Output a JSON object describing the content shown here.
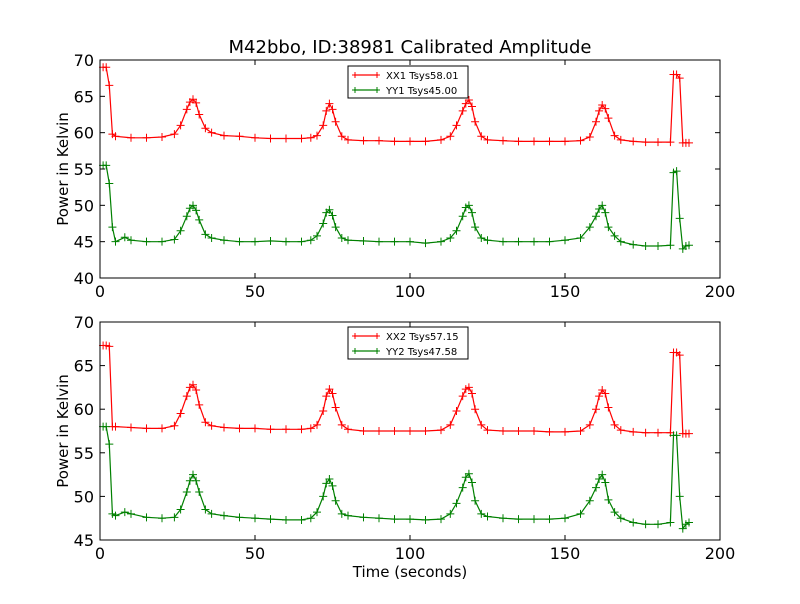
{
  "title": "M42bbo, ID:38981 Calibrated Amplitude",
  "colors": {
    "red": "#ff0000",
    "green": "#008000",
    "axes": "#000000",
    "background": "#ffffff"
  },
  "chart_data": [
    {
      "type": "line",
      "title": "M42bbo, ID:38981 Calibrated Amplitude",
      "xlabel": "",
      "ylabel": "Power in Kelvin",
      "xlim": [
        0,
        200
      ],
      "ylim": [
        40,
        70
      ],
      "xticks": [
        0,
        50,
        100,
        150,
        200
      ],
      "yticks": [
        40,
        45,
        50,
        55,
        60,
        65,
        70
      ],
      "grid": false,
      "legend": "upper center",
      "marker": "+",
      "series": [
        {
          "name": "XX1 Tsys58.01",
          "color": "#ff0000",
          "x": [
            1,
            2,
            3,
            4,
            5,
            10,
            15,
            20,
            24,
            26,
            28,
            29,
            30,
            31,
            32,
            34,
            36,
            40,
            45,
            50,
            55,
            60,
            65,
            68,
            70,
            72,
            73,
            74,
            75,
            76,
            78,
            80,
            85,
            90,
            95,
            100,
            105,
            110,
            113,
            115,
            117,
            118,
            119,
            120,
            121,
            123,
            125,
            130,
            135,
            140,
            145,
            150,
            155,
            158,
            160,
            161,
            162,
            163,
            164,
            166,
            168,
            172,
            176,
            180,
            184,
            185,
            186,
            187,
            188,
            189,
            190
          ],
          "y": [
            69,
            69,
            66.5,
            59.8,
            59.5,
            59.3,
            59.3,
            59.4,
            59.8,
            61,
            63.2,
            64.2,
            64.6,
            64.1,
            62.5,
            60.6,
            60,
            59.6,
            59.5,
            59.3,
            59.2,
            59.2,
            59.2,
            59.3,
            59.6,
            61,
            63,
            64,
            63.2,
            61.5,
            59.5,
            59,
            58.9,
            58.9,
            58.8,
            58.8,
            58.8,
            59,
            59.5,
            61,
            63,
            64,
            64.5,
            63.6,
            61.5,
            59.5,
            59,
            58.9,
            58.8,
            58.8,
            58.8,
            58.8,
            58.9,
            59.4,
            61.5,
            63,
            63.8,
            63.3,
            62,
            59.6,
            59,
            58.8,
            58.7,
            58.7,
            58.7,
            68,
            68,
            67.5,
            58.6,
            58.6,
            58.6
          ]
        },
        {
          "name": "YY1 Tsys45.00",
          "color": "#008000",
          "x": [
            1,
            2,
            3,
            4,
            5,
            8,
            10,
            15,
            20,
            24,
            26,
            28,
            29,
            30,
            31,
            32,
            34,
            36,
            40,
            45,
            50,
            55,
            60,
            65,
            68,
            70,
            72,
            73,
            74,
            75,
            76,
            78,
            80,
            85,
            90,
            95,
            100,
            105,
            110,
            113,
            115,
            117,
            118,
            119,
            120,
            121,
            123,
            125,
            130,
            135,
            140,
            145,
            150,
            155,
            158,
            160,
            161,
            162,
            163,
            164,
            166,
            168,
            172,
            176,
            180,
            184,
            185,
            186,
            187,
            188,
            189,
            190
          ],
          "y": [
            55.5,
            55.5,
            53,
            47,
            45,
            45.6,
            45.2,
            45,
            45,
            45.3,
            46.5,
            48.5,
            49.6,
            50,
            49.3,
            48,
            46,
            45.5,
            45.2,
            45,
            45,
            45.1,
            45,
            45,
            45.2,
            45.8,
            47.5,
            49,
            49.4,
            48.6,
            47,
            45.5,
            45.2,
            45.1,
            45,
            45,
            45,
            44.8,
            45,
            45.5,
            46.5,
            48.5,
            49.7,
            50,
            49,
            47,
            45.5,
            45.2,
            45,
            45,
            45,
            45,
            45.2,
            45.5,
            47,
            48.5,
            49.5,
            50,
            49,
            47,
            45.8,
            45,
            44.6,
            44.4,
            44.4,
            44.5,
            54.5,
            54.7,
            48.2,
            44,
            44.4,
            44.5
          ]
        }
      ]
    },
    {
      "type": "line",
      "title": "",
      "xlabel": "Time (seconds)",
      "ylabel": "Power in Kelvin",
      "xlim": [
        0,
        200
      ],
      "ylim": [
        45,
        70
      ],
      "xticks": [
        0,
        50,
        100,
        150,
        200
      ],
      "yticks": [
        45,
        50,
        55,
        60,
        65,
        70
      ],
      "grid": false,
      "legend": "upper center",
      "marker": "+",
      "series": [
        {
          "name": "XX2 Tsys57.15",
          "color": "#ff0000",
          "x": [
            1,
            2,
            3,
            4,
            5,
            10,
            15,
            20,
            24,
            26,
            28,
            29,
            30,
            31,
            32,
            34,
            36,
            40,
            45,
            50,
            55,
            60,
            65,
            68,
            70,
            72,
            73,
            74,
            75,
            76,
            78,
            80,
            85,
            90,
            95,
            100,
            105,
            110,
            113,
            115,
            117,
            118,
            119,
            120,
            121,
            123,
            125,
            130,
            135,
            140,
            145,
            150,
            155,
            158,
            160,
            161,
            162,
            163,
            164,
            166,
            168,
            172,
            176,
            180,
            184,
            185,
            186,
            187,
            188,
            189,
            190
          ],
          "y": [
            67.3,
            67.3,
            67.2,
            58,
            58,
            57.9,
            57.8,
            57.8,
            58.1,
            59.5,
            61.5,
            62.5,
            62.8,
            62.2,
            60.5,
            58.5,
            58.1,
            57.9,
            57.8,
            57.8,
            57.7,
            57.7,
            57.7,
            57.8,
            58.2,
            59.8,
            61.5,
            62.3,
            61.8,
            60.2,
            58.2,
            57.7,
            57.5,
            57.5,
            57.5,
            57.5,
            57.5,
            57.6,
            58.2,
            59.8,
            61.5,
            62.3,
            62.5,
            61.8,
            60,
            58.2,
            57.6,
            57.5,
            57.5,
            57.5,
            57.4,
            57.4,
            57.5,
            58.2,
            60,
            61.5,
            62.2,
            61.8,
            60.2,
            58.2,
            57.6,
            57.4,
            57.3,
            57.3,
            57.3,
            66.5,
            66.5,
            66.2,
            57.2,
            57.2,
            57.2
          ]
        },
        {
          "name": "YY2 Tsys47.58",
          "color": "#008000",
          "x": [
            1,
            2,
            3,
            4,
            5,
            8,
            10,
            15,
            20,
            24,
            26,
            28,
            29,
            30,
            31,
            32,
            34,
            36,
            40,
            45,
            50,
            55,
            60,
            65,
            68,
            70,
            72,
            73,
            74,
            75,
            76,
            78,
            80,
            85,
            90,
            95,
            100,
            105,
            110,
            113,
            115,
            117,
            118,
            119,
            120,
            121,
            123,
            125,
            130,
            135,
            140,
            145,
            150,
            155,
            158,
            160,
            161,
            162,
            163,
            164,
            166,
            168,
            172,
            176,
            180,
            184,
            185,
            186,
            187,
            188,
            189,
            190
          ],
          "y": [
            58,
            58,
            56,
            48,
            47.8,
            48.2,
            48,
            47.6,
            47.5,
            47.6,
            48.5,
            50.5,
            51.8,
            52.5,
            51.8,
            50.5,
            48.5,
            48,
            47.8,
            47.6,
            47.5,
            47.4,
            47.3,
            47.3,
            47.5,
            48.2,
            50,
            51.5,
            52,
            51.2,
            49.5,
            48,
            47.8,
            47.6,
            47.5,
            47.4,
            47.4,
            47.3,
            47.4,
            48,
            49.2,
            51,
            52.2,
            52.6,
            51.6,
            49.5,
            48,
            47.7,
            47.5,
            47.4,
            47.4,
            47.4,
            47.5,
            48,
            49.5,
            51,
            52,
            52.5,
            51.6,
            49.6,
            48.2,
            47.5,
            47,
            46.8,
            46.8,
            47,
            57,
            57,
            50,
            46.3,
            46.8,
            47
          ]
        }
      ]
    }
  ]
}
